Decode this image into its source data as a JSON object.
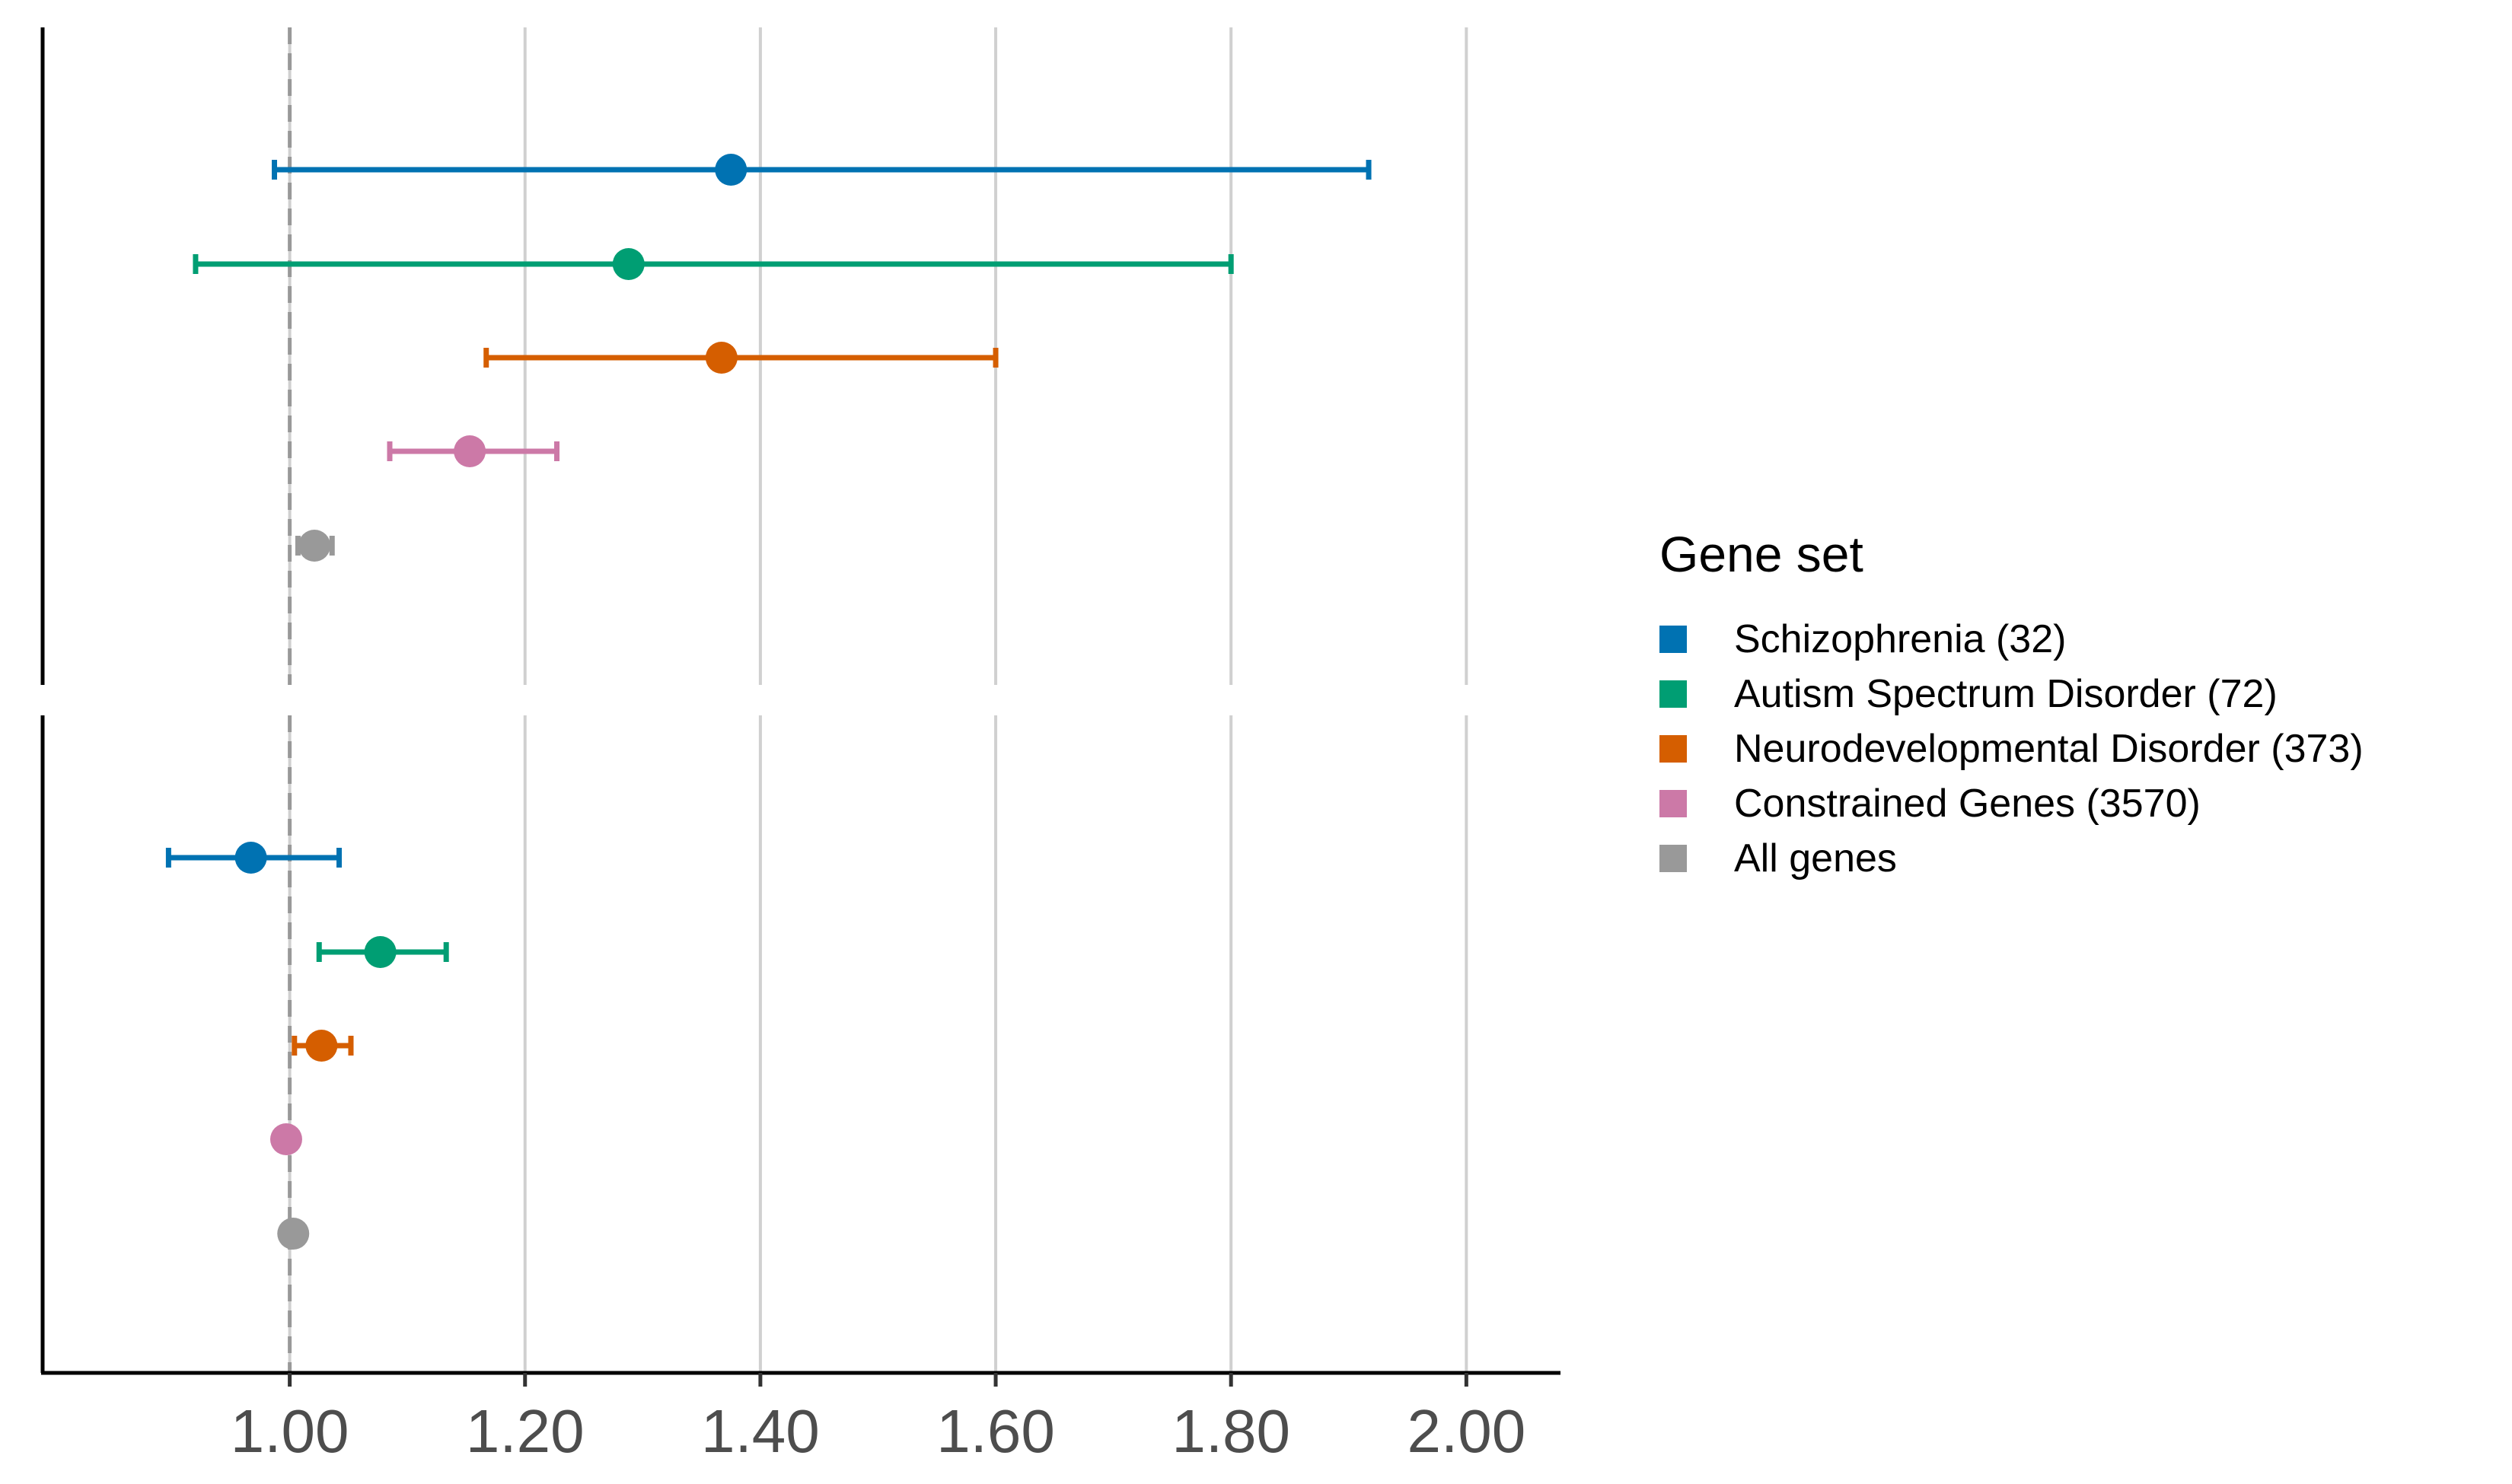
{
  "chart_data": {
    "type": "scatter",
    "subtype": "forest-plot-faceted",
    "title": "",
    "xlabel": "",
    "ylabel": "",
    "xlim": [
      0.79,
      2.08
    ],
    "x_ticks": [
      1.0,
      1.2,
      1.4,
      1.6,
      1.8,
      2.0
    ],
    "x_tick_labels": [
      "1.00",
      "1.20",
      "1.40",
      "1.60",
      "1.80",
      "2.00"
    ],
    "reference_line": 1.0,
    "grid": "vertical-major",
    "legend": {
      "title": "Gene set",
      "placement": "right",
      "entries": [
        {
          "label": "Schizophrenia (32)",
          "color": "#0072B2"
        },
        {
          "label": "Autism Spectrum Disorder (72)",
          "color": "#009E73"
        },
        {
          "label": "Neurodevelopmental Disorder (373)",
          "color": "#D55E00"
        },
        {
          "label": "Constrained Genes (3570)",
          "color": "#CC79A7"
        },
        {
          "label": "All genes",
          "color": "#999999"
        }
      ]
    },
    "panels": [
      {
        "series": [
          {
            "name": "Schizophrenia (32)",
            "estimate": 1.375,
            "lower": 0.987,
            "upper": 1.917
          },
          {
            "name": "Autism Spectrum Disorder (72)",
            "estimate": 1.288,
            "lower": 0.92,
            "upper": 1.8
          },
          {
            "name": "Neurodevelopmental Disorder (373)",
            "estimate": 1.367,
            "lower": 1.167,
            "upper": 1.6
          },
          {
            "name": "Constrained Genes (3570)",
            "estimate": 1.153,
            "lower": 1.085,
            "upper": 1.227
          },
          {
            "name": "All genes",
            "estimate": 1.021,
            "lower": 1.007,
            "upper": 1.036
          }
        ]
      },
      {
        "series": [
          {
            "name": "Schizophrenia (32)",
            "estimate": 0.967,
            "lower": 0.897,
            "upper": 1.042
          },
          {
            "name": "Autism Spectrum Disorder (72)",
            "estimate": 1.077,
            "lower": 1.025,
            "upper": 1.133
          },
          {
            "name": "Neurodevelopmental Disorder (373)",
            "estimate": 1.027,
            "lower": 1.004,
            "upper": 1.052
          },
          {
            "name": "Constrained Genes (3570)",
            "estimate": 0.997,
            "lower": 0.99,
            "upper": 1.003
          },
          {
            "name": "All genes",
            "estimate": 1.003,
            "lower": 1.0,
            "upper": 1.005
          }
        ]
      }
    ]
  }
}
